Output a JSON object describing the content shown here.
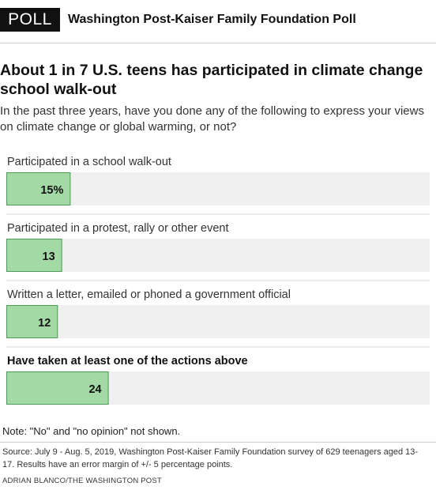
{
  "header": {
    "tag": "POLL",
    "poll_name": "Washington Post-Kaiser Family Foundation Poll"
  },
  "chart_data": {
    "type": "bar",
    "orientation": "horizontal",
    "title": "About 1 in 7 U.S. teens has participated in climate change school walk-out",
    "subtitle": "In the past three years, have you done any of the following to express your views on climate change or global warming, or not?",
    "categories": [
      "Participated in a school walk-out",
      "Participated in a protest, rally or other event",
      "Written a letter, emailed or phoned a government official",
      "Have taken at least one of the actions above"
    ],
    "values": [
      15,
      13,
      12,
      24
    ],
    "value_labels": [
      "15%",
      "13",
      "12",
      "24"
    ],
    "bold_categories": [
      false,
      false,
      false,
      true
    ],
    "xlim": [
      0,
      100
    ],
    "unit": "%",
    "colors": {
      "bar": "#a3d9a5",
      "bar_stroke": "#4f9a55",
      "track": "#f0f0f0",
      "divider": "#d9d9d9",
      "label": "#333333"
    }
  },
  "footer": {
    "note": "Note: \"No\" and \"no opinion\" not shown.",
    "source": "Source: July 9 - Aug. 5, 2019, Washington Post-Kaiser Family Foundation survey of 629 teenagers aged 13-17. Results have an error margin of +/- 5 percentage points.",
    "credit": "ADRIAN BLANCO/THE WASHINGTON POST"
  }
}
